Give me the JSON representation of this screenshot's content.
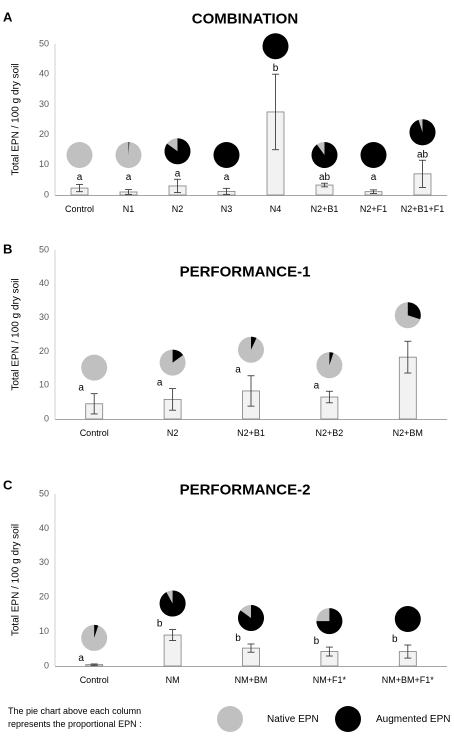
{
  "panels": [
    {
      "letter": "A",
      "title": "COMBINATION",
      "ylabel": "Total EPN / 100 g dry soil",
      "ylim": [
        0,
        50
      ],
      "yticks": [
        0,
        10,
        20,
        30,
        40,
        50
      ]
    },
    {
      "letter": "B",
      "title": "PERFORMANCE-1",
      "ylabel": "Total EPN / 100 g dry soil",
      "ylim": [
        0,
        50
      ],
      "yticks": [
        0,
        10,
        20,
        30,
        40,
        50
      ]
    },
    {
      "letter": "C",
      "title": "PERFORMANCE-2",
      "ylabel": "Total EPN / 100 g dry soil",
      "ylim": [
        0,
        50
      ],
      "yticks": [
        0,
        10,
        20,
        30,
        40,
        50
      ]
    }
  ],
  "legend": {
    "caption_line1": "The pie chart above each column",
    "caption_line2": "represents the proportional EPN :",
    "native_label": "Native EPN",
    "augmented_label": "Augmented EPN"
  },
  "colors": {
    "native": "#c0c0c0",
    "augmented": "#000000",
    "bar_fill": "#f2f2f2",
    "bar_stroke": "#7f7f7f"
  },
  "chart_data": [
    {
      "type": "bar",
      "title": "COMBINATION",
      "ylabel": "Total EPN / 100 g dry soil",
      "ylim": [
        0,
        50
      ],
      "categories": [
        "Control",
        "N1",
        "N2",
        "N3",
        "N4",
        "N2+B1",
        "N2+F1",
        "N2+B1+F1"
      ],
      "values": [
        2.3,
        1.0,
        3.0,
        1.2,
        27.5,
        3.3,
        1.1,
        7.0
      ],
      "errors": [
        1.2,
        0.8,
        2.2,
        1.0,
        12.5,
        0.6,
        0.6,
        4.5
      ],
      "letters": [
        "a",
        "a",
        "a",
        "a",
        "b",
        "ab",
        "a",
        "ab"
      ],
      "augmented_fraction": [
        0.0,
        0.01,
        0.85,
        1.0,
        1.0,
        0.9,
        1.0,
        0.95
      ]
    },
    {
      "type": "bar",
      "title": "PERFORMANCE-1",
      "ylabel": "Total EPN / 100 g dry soil",
      "ylim": [
        0,
        50
      ],
      "categories": [
        "Control",
        "N2",
        "N2+B1",
        "N2+B2",
        "N2+BM"
      ],
      "values": [
        4.5,
        5.8,
        8.3,
        6.5,
        18.3
      ],
      "errors": [
        3.0,
        3.2,
        4.5,
        1.7,
        4.7
      ],
      "letters": [
        "a",
        "a",
        "a",
        "a",
        ""
      ],
      "augmented_fraction": [
        0.0,
        0.15,
        0.07,
        0.05,
        0.3
      ]
    },
    {
      "type": "bar",
      "title": "PERFORMANCE-2",
      "ylabel": "Total EPN / 100 g dry soil",
      "ylim": [
        0,
        50
      ],
      "categories": [
        "Control",
        "NM",
        "NM+BM",
        "NM+F1*",
        "NM+BM+F1*"
      ],
      "values": [
        0.4,
        9.0,
        5.2,
        4.2,
        4.2
      ],
      "errors": [
        0.2,
        1.6,
        1.2,
        1.3,
        1.9
      ],
      "letters": [
        "a",
        "b",
        "b",
        "b",
        "b"
      ],
      "augmented_fraction": [
        0.05,
        0.92,
        0.85,
        0.75,
        1.0
      ]
    }
  ]
}
